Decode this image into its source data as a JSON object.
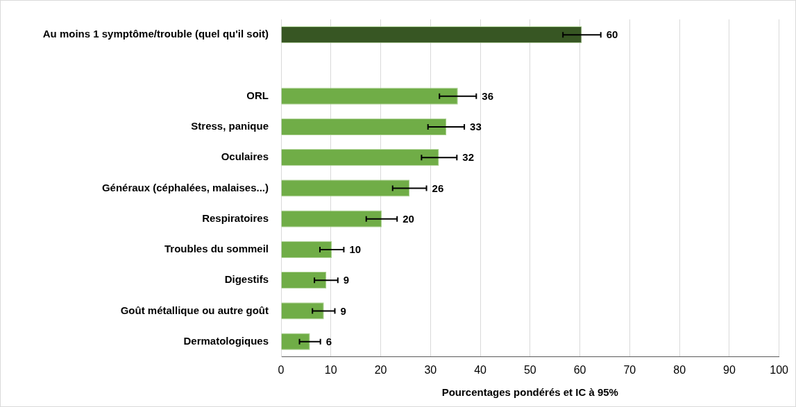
{
  "chart_data": {
    "type": "bar",
    "orientation": "horizontal",
    "xlabel": "Pourcentages pondérés et IC à 95%",
    "categories": [
      "Au moins 1 symptôme/trouble (quel qu'il soit)",
      null,
      "ORL",
      "Stress, panique",
      "Oculaires",
      "Généraux (céphalées, malaises...)",
      "Respiratoires",
      "Troubles du sommeil",
      "Digestifs",
      "Goût métallique ou autre goût",
      "Dermatologiques"
    ],
    "values": [
      60.4,
      null,
      35.5,
      33.2,
      31.7,
      25.8,
      20.2,
      10.2,
      9.1,
      8.6,
      5.8
    ],
    "colors": [
      "#375623",
      null,
      "#70ad47",
      "#70ad47",
      "#70ad47",
      "#70ad47",
      "#70ad47",
      "#70ad47",
      "#70ad47",
      "#70ad47",
      "#70ad47"
    ],
    "errors": [
      [
        56.6,
        64.2
      ],
      null,
      [
        31.8,
        39.2
      ],
      [
        29.5,
        36.8
      ],
      [
        28.2,
        35.3
      ],
      [
        22.4,
        29.2
      ],
      [
        17.1,
        23.3
      ],
      [
        7.8,
        12.6
      ],
      [
        6.7,
        11.4
      ],
      [
        6.3,
        10.8
      ],
      [
        3.7,
        7.9
      ]
    ],
    "value_labels": [
      "60",
      null,
      "36",
      "33",
      "32",
      "26",
      "20",
      "10",
      "9",
      "9",
      "6"
    ],
    "xlim": [
      0,
      100
    ],
    "xticks": [
      0,
      10,
      20,
      30,
      40,
      50,
      60,
      70,
      80,
      90,
      100
    ],
    "grid": "x",
    "legend": false
  }
}
